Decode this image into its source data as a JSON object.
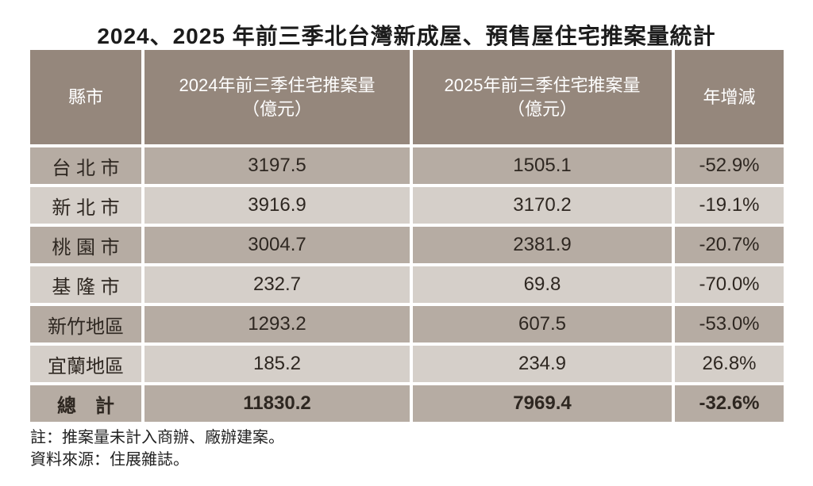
{
  "title": "2024、2025 年前三季北台灣新成屋、預售屋住宅推案量統計",
  "table": {
    "headers": {
      "city": "縣市",
      "y2024": "2024年前三季住宅推案量\n（億元）",
      "y2025": "2025年前三季住宅推案量\n（億元）",
      "yoy": "年增減"
    },
    "rows": [
      {
        "city": "台 北 市",
        "y2024": "3197.5",
        "y2025": "1505.1",
        "yoy": "-52.9%"
      },
      {
        "city": "新 北 市",
        "y2024": "3916.9",
        "y2025": "3170.2",
        "yoy": "-19.1%"
      },
      {
        "city": "桃 園 市",
        "y2024": "3004.7",
        "y2025": "2381.9",
        "yoy": "-20.7%"
      },
      {
        "city": "基 隆 市",
        "y2024": "232.7",
        "y2025": "69.8",
        "yoy": "-70.0%"
      },
      {
        "city": "新竹地區",
        "y2024": "1293.2",
        "y2025": "607.5",
        "yoy": "-53.0%"
      },
      {
        "city": "宜蘭地區",
        "y2024": "185.2",
        "y2025": "234.9",
        "yoy": "26.8%"
      }
    ],
    "total": {
      "city": "總　計",
      "y2024": "11830.2",
      "y2025": "7969.4",
      "yoy": "-32.6%"
    }
  },
  "notes": {
    "note1": "註：推案量未計入商辦、廠辦建案。",
    "note2": "資料來源：住展雜誌。"
  },
  "colors": {
    "header_bg": "#95877c",
    "row_dark_bg": "#b6aca3",
    "row_light_bg": "#d5cfc9",
    "grid_gap": "#ffffff",
    "header_text": "#ffffff",
    "body_text": "#2e2721"
  },
  "chart_data": {
    "type": "table",
    "title": "2024、2025 年前三季北台灣新成屋、預售屋住宅推案量統計",
    "columns": [
      "縣市",
      "2024年前三季住宅推案量（億元）",
      "2025年前三季住宅推案量（億元）",
      "年增減"
    ],
    "rows": [
      [
        "台北市",
        3197.5,
        1505.1,
        "-52.9%"
      ],
      [
        "新北市",
        3916.9,
        3170.2,
        "-19.1%"
      ],
      [
        "桃園市",
        3004.7,
        2381.9,
        "-20.7%"
      ],
      [
        "基隆市",
        232.7,
        69.8,
        "-70.0%"
      ],
      [
        "新竹地區",
        1293.2,
        607.5,
        "-53.0%"
      ],
      [
        "宜蘭地區",
        185.2,
        234.9,
        "26.8%"
      ],
      [
        "總計",
        11830.2,
        7969.4,
        "-32.6%"
      ]
    ],
    "notes": [
      "註：推案量未計入商辦、廠辦建案。",
      "資料來源：住展雜誌。"
    ]
  }
}
